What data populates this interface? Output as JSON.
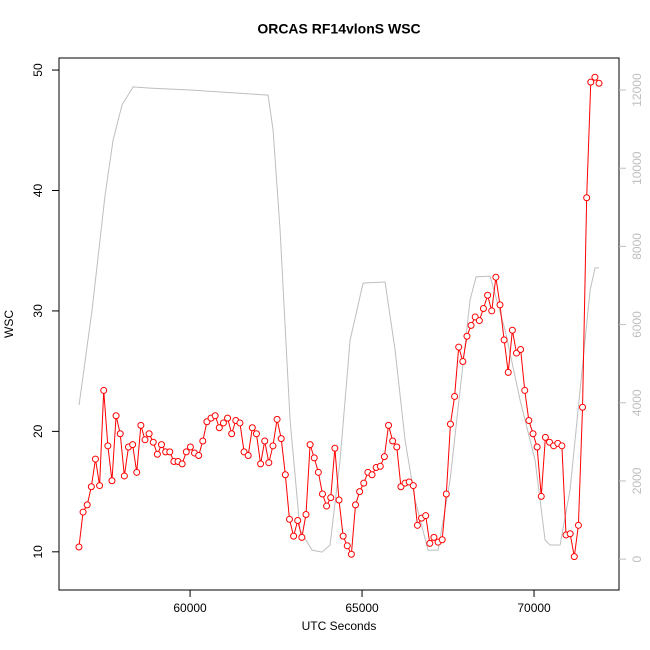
{
  "chart_data": {
    "type": "line",
    "title": "ORCAS RF14vlonS WSC",
    "x_label": "UTC Seconds",
    "y_label": "WSC",
    "xlim": [
      56190,
      72470
    ],
    "ylim": [
      6.83,
      51.0
    ],
    "y2lim": [
      -790,
      12820
    ],
    "xticks": [
      60000,
      65000,
      70000
    ],
    "yticks": [
      10,
      20,
      30,
      40,
      50
    ],
    "y2ticks": [
      0,
      2000,
      4000,
      6000,
      8000,
      10000,
      12000
    ],
    "y2_color": "#bebebe",
    "series": [
      {
        "color": "#bebebe",
        "axis": "y2",
        "x": [
          56773,
          57151,
          57529,
          57762,
          58023,
          58343,
          58837,
          60000,
          62268,
          62413,
          62617,
          62907,
          63198,
          63547,
          63838,
          64070,
          64361,
          64652,
          65030,
          65669,
          65960,
          66250,
          66541,
          66919,
          67210,
          67559,
          67850,
          68140,
          68315,
          68722,
          69158,
          69594,
          70030,
          70321,
          70466,
          70757,
          71047,
          71338,
          71629,
          71774,
          71890
        ],
        "values": [
          3940,
          6370,
          9310,
          10720,
          11620,
          12080,
          12050,
          12000,
          11870,
          10980,
          8420,
          3560,
          740,
          230,
          180,
          360,
          2530,
          5600,
          7060,
          7090,
          5350,
          3050,
          1510,
          230,
          230,
          2020,
          4320,
          6630,
          7220,
          7240,
          5860,
          4070,
          2530,
          490,
          360,
          360,
          1770,
          4320,
          6880,
          7450,
          7450
        ]
      },
      {
        "color": "#ff0000",
        "marker": "circle",
        "x": [
          56770,
          56890,
          57010,
          57130,
          57250,
          57370,
          57490,
          57610,
          57730,
          57850,
          57970,
          58090,
          58210,
          58330,
          58450,
          58570,
          58690,
          58810,
          58930,
          59050,
          59170,
          59290,
          59410,
          59530,
          59650,
          59770,
          59890,
          60010,
          60130,
          60250,
          60370,
          60490,
          60610,
          60730,
          60850,
          60970,
          61090,
          61210,
          61330,
          61450,
          61570,
          61690,
          61810,
          61930,
          62050,
          62170,
          62290,
          62410,
          62530,
          62650,
          62770,
          62890,
          63010,
          63130,
          63250,
          63370,
          63490,
          63610,
          63730,
          63850,
          63970,
          64090,
          64210,
          64330,
          64450,
          64570,
          64690,
          64810,
          64930,
          65050,
          65170,
          65290,
          65410,
          65530,
          65650,
          65770,
          65890,
          66010,
          66130,
          66250,
          66370,
          66490,
          66610,
          66730,
          66850,
          66970,
          67090,
          67210,
          67330,
          67450,
          67570,
          67690,
          67810,
          67930,
          68050,
          68170,
          68290,
          68410,
          68530,
          68650,
          68770,
          68890,
          69010,
          69130,
          69250,
          69370,
          69490,
          69610,
          69730,
          69850,
          69970,
          70090,
          70210,
          70330,
          70450,
          70570,
          70690,
          70810,
          70930,
          71050,
          71170,
          71290,
          71410,
          71530,
          71650,
          71770,
          71890
        ],
        "values": [
          10.4,
          13.3,
          13.9,
          15.4,
          17.7,
          15.5,
          23.4,
          18.8,
          15.9,
          21.3,
          19.8,
          16.3,
          18.7,
          18.9,
          16.6,
          20.5,
          19.3,
          19.8,
          19.1,
          18.1,
          18.9,
          18.3,
          18.3,
          17.5,
          17.5,
          17.3,
          18.3,
          18.7,
          18.2,
          18.0,
          19.2,
          20.8,
          21.1,
          21.3,
          20.3,
          20.7,
          21.1,
          19.8,
          20.9,
          20.7,
          18.3,
          18.0,
          20.3,
          19.8,
          17.3,
          19.2,
          17.4,
          18.8,
          21.0,
          19.4,
          16.4,
          12.7,
          11.3,
          12.6,
          11.2,
          13.1,
          18.9,
          17.8,
          16.6,
          14.8,
          13.8,
          14.5,
          18.6,
          14.3,
          11.3,
          10.5,
          9.8,
          13.9,
          15.0,
          15.7,
          16.6,
          16.4,
          17.0,
          17.1,
          17.9,
          20.5,
          19.2,
          18.7,
          15.4,
          15.7,
          15.8,
          15.5,
          12.2,
          12.8,
          13.0,
          10.7,
          11.2,
          10.8,
          11.0,
          14.8,
          20.6,
          22.9,
          27.0,
          25.8,
          27.9,
          28.8,
          29.5,
          29.2,
          30.2,
          31.3,
          30.0,
          32.8,
          30.5,
          27.6,
          24.9,
          28.4,
          26.5,
          26.8,
          23.4,
          20.9,
          19.8,
          18.7,
          14.6,
          19.5,
          19.1,
          18.8,
          19.0,
          18.8,
          11.4,
          11.5,
          9.6,
          12.2,
          22.0,
          39.4,
          49.0,
          49.4,
          48.9
        ]
      }
    ]
  }
}
